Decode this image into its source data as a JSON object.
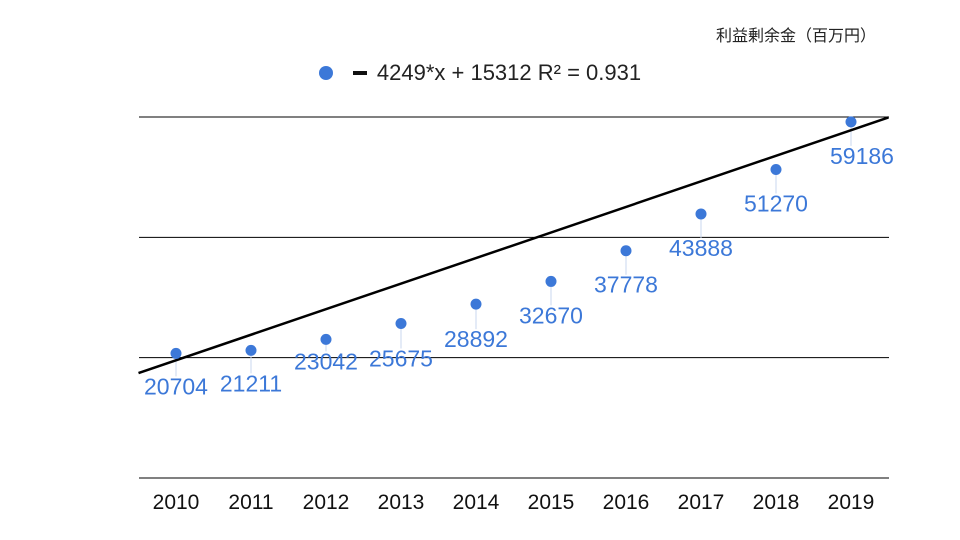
{
  "unit_label": "利益剰余金（百万円）",
  "legend": {
    "trendline_label": "4249*x + 15312 R² = 0.931"
  },
  "colors": {
    "series": "#3c78d8",
    "trendline": "#000000",
    "grid": "#000000"
  },
  "chart_data": {
    "type": "scatter",
    "title": "",
    "xlabel": "",
    "ylabel": "",
    "categories": [
      "2010",
      "2011",
      "2012",
      "2013",
      "2014",
      "2015",
      "2016",
      "2017",
      "2018",
      "2019"
    ],
    "series": [
      {
        "values": [
          20704,
          21211,
          23042,
          25675,
          28892,
          32670,
          37778,
          43888,
          51270,
          59186
        ]
      }
    ],
    "data_labels": [
      "20704",
      "21211",
      "23042",
      "25675",
      "28892",
      "32670",
      "37778",
      "43888",
      "51270",
      "59186"
    ],
    "trendline": {
      "slope": 4249,
      "intercept": 15312,
      "r2": 0.931
    },
    "ylim": [
      0,
      60000
    ],
    "y_gridlines": [
      0,
      20000,
      40000,
      60000
    ],
    "show_y_tick_labels": false,
    "grid": true,
    "legend_position": "top"
  }
}
